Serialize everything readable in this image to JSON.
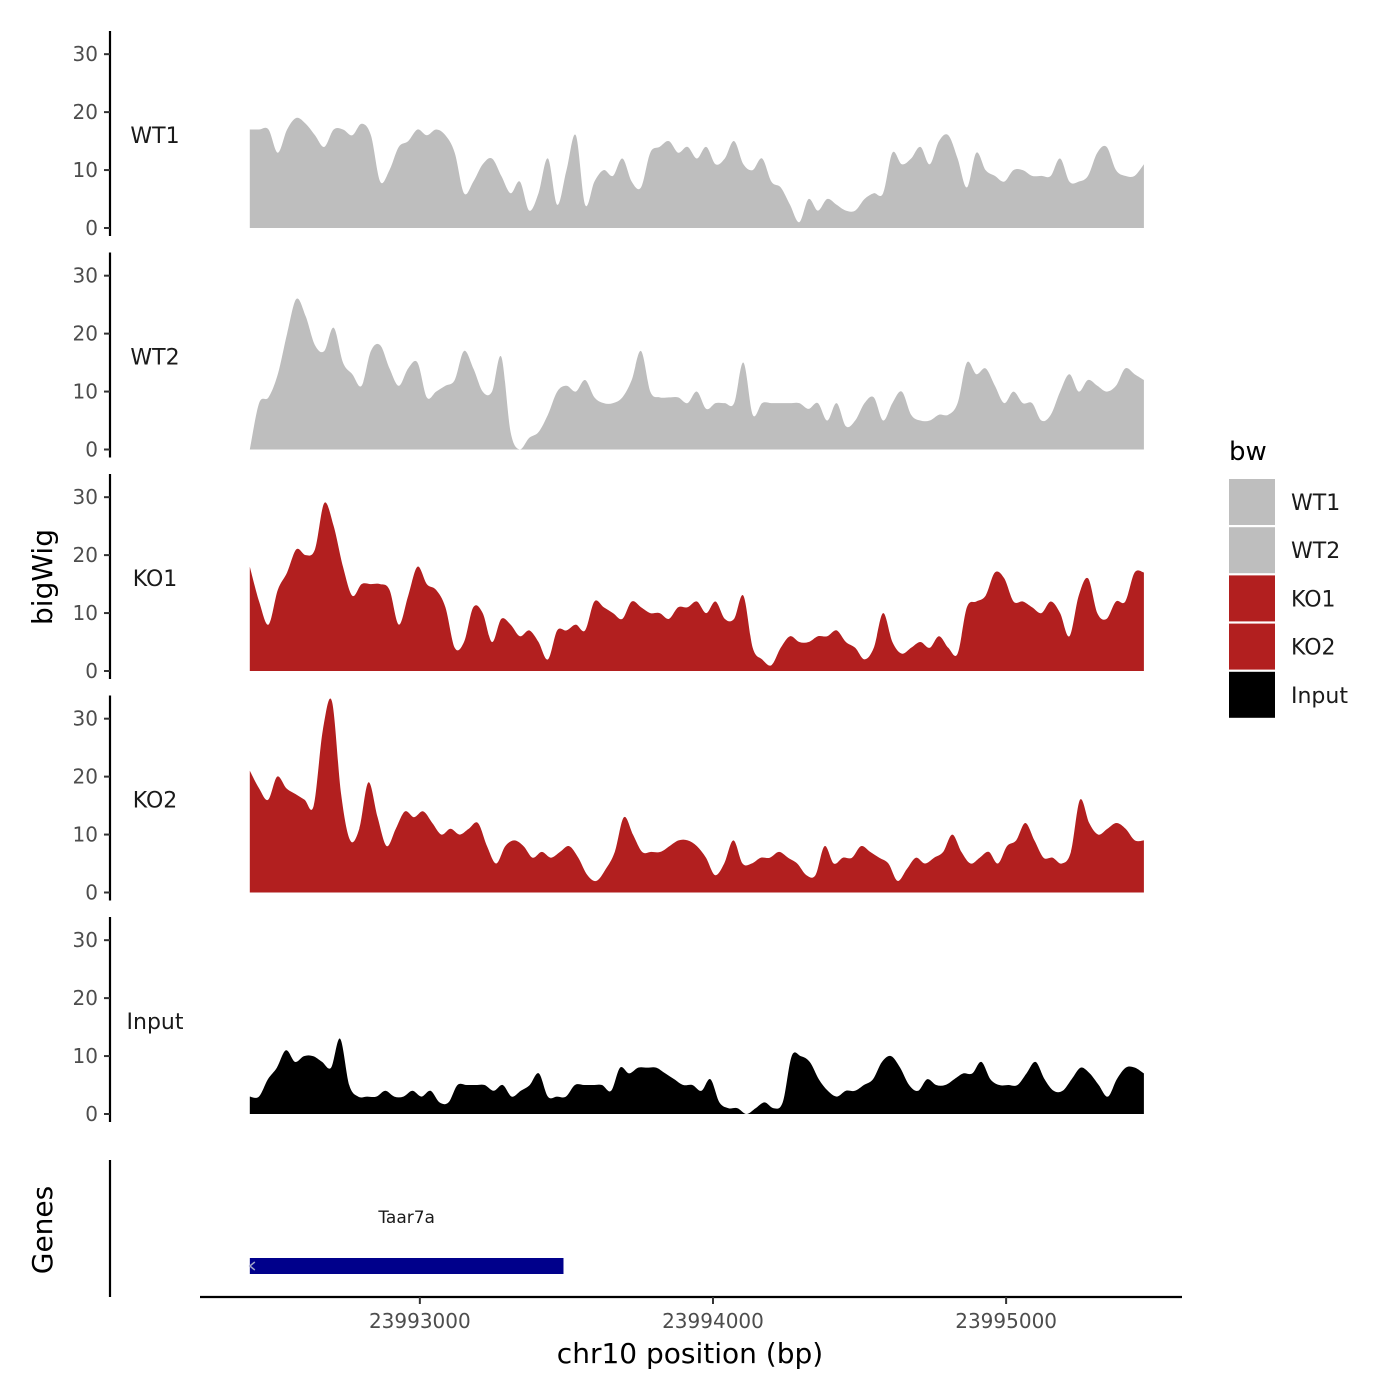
{
  "chart_data": {
    "type": "area",
    "chromosome": "chr10",
    "xlabel": "chr10 position (bp)",
    "ylabel": "bigWig",
    "genes_label": "Genes",
    "xlim": [
      23992250,
      23995600
    ],
    "x_ticks": [
      23993000,
      23994000,
      23995000
    ],
    "x_tick_labels": [
      "23993000",
      "23994000",
      "23995000"
    ],
    "ylim": [
      0,
      34
    ],
    "y_ticks": [
      0,
      10,
      20,
      30
    ],
    "y_tick_labels": [
      "0",
      "10",
      "20",
      "30"
    ],
    "data_x_range": [
      23992420,
      23995470
    ],
    "legend": {
      "title": "bw",
      "position": "right"
    },
    "colors": {
      "WT1": "#bebebe",
      "WT2": "#bebebe",
      "KO1": "#b21f1f",
      "KO2": "#b21f1f",
      "Input": "#000000",
      "gene": "#00008b"
    },
    "tracks": [
      {
        "name": "WT1",
        "values": [
          17,
          17,
          17,
          13,
          17,
          19,
          18,
          16,
          14,
          17,
          17,
          16,
          18,
          16,
          8,
          10,
          14,
          15,
          17,
          16,
          17,
          16,
          13,
          6,
          8,
          11,
          12,
          9,
          6,
          8,
          3,
          6,
          12,
          4,
          10,
          16,
          4,
          8,
          10,
          9,
          12,
          8,
          7,
          13,
          14,
          15,
          13,
          14,
          12,
          14,
          11,
          12,
          15,
          11,
          10,
          12,
          8,
          7,
          4,
          1,
          5,
          3,
          5,
          4,
          3,
          3,
          5,
          6,
          6,
          13,
          11,
          12,
          14,
          11,
          15,
          16,
          12,
          7,
          13,
          10,
          9,
          8,
          10,
          10,
          9,
          9,
          9,
          12,
          8,
          8,
          9,
          13,
          14,
          10,
          9,
          9,
          11
        ]
      },
      {
        "name": "WT2",
        "values": [
          0,
          8,
          9,
          13,
          20,
          26,
          23,
          18,
          17,
          21,
          15,
          13,
          11,
          17,
          18,
          14,
          11,
          14,
          15,
          9,
          10,
          11,
          12,
          17,
          14,
          10,
          10,
          16,
          3,
          0,
          2,
          3,
          6,
          10,
          11,
          10,
          12,
          9,
          8,
          8,
          9,
          12,
          17,
          10,
          9,
          9,
          9,
          8,
          10,
          7,
          8,
          8,
          8,
          15,
          6,
          8,
          8,
          8,
          8,
          8,
          7,
          8,
          5,
          8,
          4,
          5,
          8,
          9,
          5,
          8,
          10,
          6,
          5,
          5,
          6,
          6,
          8,
          15,
          13,
          14,
          11,
          8,
          10,
          8,
          8,
          5,
          6,
          10,
          13,
          10,
          12,
          11,
          10,
          11,
          14,
          13,
          12
        ]
      },
      {
        "name": "KO1",
        "values": [
          18,
          12,
          8,
          14,
          17,
          21,
          20,
          21,
          29,
          25,
          18,
          13,
          15,
          15,
          15,
          14,
          8,
          13,
          18,
          15,
          14,
          11,
          4,
          5,
          11,
          10,
          5,
          9,
          8,
          6,
          7,
          5,
          2,
          7,
          7,
          8,
          7,
          12,
          11,
          10,
          9,
          12,
          11,
          10,
          10,
          9,
          11,
          11,
          12,
          10,
          12,
          9,
          9,
          13,
          4,
          2,
          1,
          4,
          6,
          5,
          5,
          6,
          6,
          7,
          5,
          4,
          2,
          4,
          10,
          5,
          3,
          4,
          5,
          4,
          6,
          4,
          3,
          11,
          12,
          13,
          17,
          16,
          12,
          12,
          11,
          10,
          12,
          10,
          6,
          13,
          16,
          10,
          9,
          12,
          12,
          17,
          17
        ]
      },
      {
        "name": "KO2",
        "values": [
          21,
          18,
          16,
          20,
          18,
          17,
          16,
          15,
          28,
          33,
          17,
          9,
          11,
          19,
          13,
          8,
          11,
          14,
          13,
          14,
          12,
          10,
          11,
          10,
          11,
          12,
          8,
          5,
          8,
          9,
          8,
          6,
          7,
          6,
          7,
          8,
          6,
          3,
          2,
          4,
          7,
          13,
          10,
          7,
          7,
          7,
          8,
          9,
          9,
          8,
          6,
          3,
          5,
          9,
          5,
          5,
          6,
          6,
          7,
          6,
          5,
          3,
          3,
          8,
          5,
          6,
          6,
          8,
          7,
          6,
          5,
          2,
          4,
          6,
          5,
          6,
          7,
          10,
          7,
          5,
          6,
          7,
          5,
          8,
          9,
          12,
          9,
          6,
          6,
          5,
          7,
          16,
          12,
          10,
          11,
          12,
          11,
          9,
          9
        ]
      },
      {
        "name": "Input",
        "values": [
          3,
          3,
          6,
          8,
          11,
          9,
          10,
          10,
          9,
          8,
          13,
          5,
          3,
          3,
          3,
          4,
          3,
          3,
          4,
          3,
          4,
          2,
          2,
          5,
          5,
          5,
          5,
          4,
          5,
          3,
          4,
          5,
          7,
          3,
          3,
          3,
          5,
          5,
          5,
          5,
          4,
          8,
          7,
          8,
          8,
          8,
          7,
          6,
          5,
          5,
          4,
          6,
          2,
          1,
          1,
          0,
          1,
          2,
          1,
          2,
          10,
          10,
          9,
          6,
          4,
          3,
          4,
          4,
          5,
          6,
          9,
          10,
          8,
          5,
          4,
          6,
          5,
          5,
          6,
          7,
          7,
          9,
          6,
          5,
          5,
          5,
          7,
          9,
          6,
          4,
          4,
          6,
          8,
          7,
          5,
          3,
          6,
          8,
          8,
          7
        ]
      }
    ],
    "genes": [
      {
        "name": "Taar7a",
        "start": 23992420,
        "end": 23993490,
        "strand": "-"
      }
    ]
  }
}
